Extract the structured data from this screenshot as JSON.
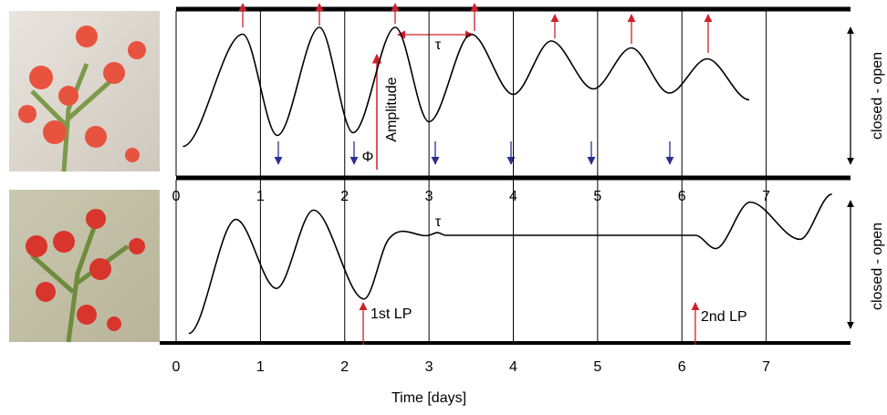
{
  "chart_data": [
    {
      "type": "line",
      "ylabel": "closed - open",
      "x": [
        0.08,
        0.79,
        1.2,
        1.7,
        2.1,
        2.6,
        3.0,
        3.5,
        4.0,
        4.45,
        4.95,
        5.4,
        5.85,
        6.3,
        6.8
      ],
      "values": [
        0.13,
        0.95,
        0.21,
        1.0,
        0.23,
        1.0,
        0.31,
        0.95,
        0.51,
        0.9,
        0.55,
        0.85,
        0.52,
        0.77,
        0.47
      ],
      "color": "#000000",
      "xlim": [
        0,
        8
      ],
      "ylim": [
        0,
        1
      ],
      "xticks": [
        0,
        1,
        2,
        3,
        4,
        5,
        6,
        7
      ],
      "grid": true,
      "annotations": [
        "Amplitude",
        "Φ",
        "τ"
      ]
    },
    {
      "type": "line",
      "ylabel": "closed - open",
      "xlabel": "Time [days]",
      "x": [
        0.15,
        0.71,
        1.19,
        1.63,
        2.23,
        2.52,
        3.0,
        3.1,
        3.2,
        5.0,
        6.16,
        6.4,
        6.81,
        7.4,
        7.78
      ],
      "values": [
        0.03,
        0.89,
        0.37,
        0.96,
        0.29,
        0.74,
        0.77,
        0.79,
        0.77,
        0.77,
        0.77,
        0.67,
        1.02,
        0.74,
        1.08
      ],
      "color": "#000000",
      "xlim": [
        0,
        8
      ],
      "ylim": [
        0,
        1.1
      ],
      "xticks": [
        0,
        1,
        2,
        3,
        4,
        5,
        6,
        7
      ],
      "grid": true,
      "annotations": [
        "τ",
        "1st LP",
        "2nd LP"
      ]
    }
  ]
}
